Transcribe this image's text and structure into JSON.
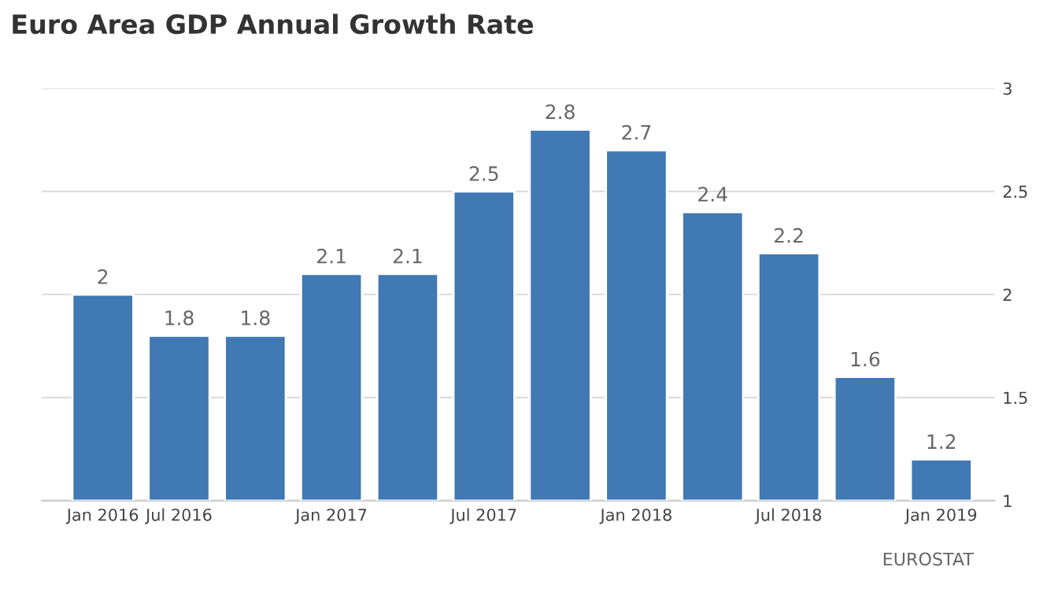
{
  "chart_data": {
    "type": "bar",
    "title": "Euro Area GDP Annual Growth Rate",
    "categories": [
      "Jan 2016",
      "Jul 2016",
      null,
      "Jan 2017",
      null,
      "Jul 2017",
      null,
      "Jan 2018",
      null,
      "Jul 2018",
      null,
      "Jan 2019"
    ],
    "values": [
      2,
      1.8,
      1.8,
      2.1,
      2.1,
      2.5,
      2.8,
      2.7,
      2.4,
      2.2,
      1.6,
      1.2
    ],
    "color": "#4079b4",
    "ylim": [
      1,
      3
    ],
    "yticks": [
      1,
      1.5,
      2,
      2.5,
      3
    ],
    "grid": "y",
    "data_labels": true,
    "annotations": [
      "EUROSTAT"
    ]
  }
}
